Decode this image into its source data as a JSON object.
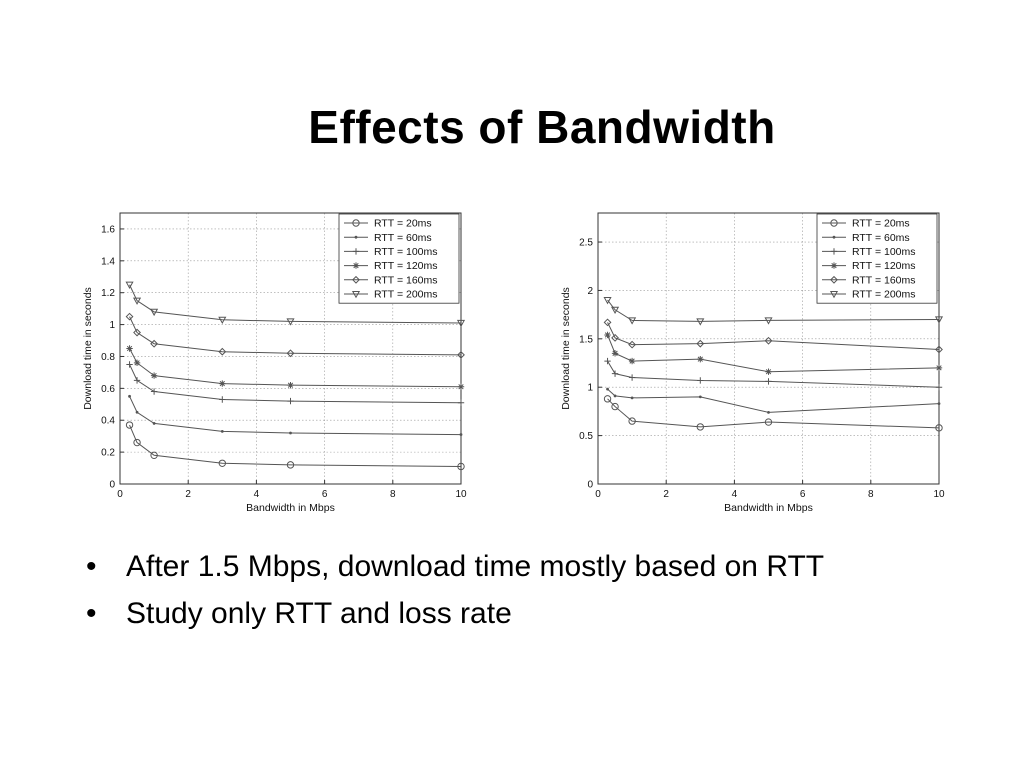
{
  "slide": {
    "title": "Effects of Bandwidth",
    "bullet_glyph": "•",
    "bullets": [
      "After 1.5 Mbps, download time mostly based on RTT",
      "Study only RTT and loss rate"
    ]
  },
  "chart_data": [
    {
      "type": "line",
      "xlabel": "Bandwidth in Mbps",
      "ylabel": "Download time in seconds",
      "xlim": [
        0,
        10
      ],
      "ylim": [
        0,
        1.7
      ],
      "xticks": [
        0,
        2,
        4,
        6,
        8,
        10
      ],
      "yticks": [
        0,
        0.2,
        0.4,
        0.6,
        0.8,
        1,
        1.2,
        1.4,
        1.6
      ],
      "ytick_labels": [
        "0",
        "0.2",
        "0.4",
        "0.6",
        "0.8",
        "1",
        "1.2",
        "1.4",
        "1.6"
      ],
      "grid": true,
      "legend_position": "top-right",
      "line_color": "#555555",
      "series": [
        {
          "name": "RTT = 20ms",
          "marker": "circle",
          "x": [
            0.28,
            0.5,
            1,
            3,
            5,
            10
          ],
          "y": [
            0.37,
            0.26,
            0.18,
            0.13,
            0.12,
            0.11
          ]
        },
        {
          "name": "RTT = 60ms",
          "marker": "point",
          "x": [
            0.28,
            0.5,
            1,
            3,
            5,
            10
          ],
          "y": [
            0.55,
            0.45,
            0.38,
            0.33,
            0.32,
            0.31
          ]
        },
        {
          "name": "RTT = 100ms",
          "marker": "plus",
          "x": [
            0.28,
            0.5,
            1,
            3,
            5,
            10
          ],
          "y": [
            0.75,
            0.65,
            0.58,
            0.53,
            0.52,
            0.51
          ]
        },
        {
          "name": "RTT = 120ms",
          "marker": "star",
          "x": [
            0.28,
            0.5,
            1,
            3,
            5,
            10
          ],
          "y": [
            0.85,
            0.76,
            0.68,
            0.63,
            0.62,
            0.61
          ]
        },
        {
          "name": "RTT = 160ms",
          "marker": "diamond",
          "x": [
            0.28,
            0.5,
            1,
            3,
            5,
            10
          ],
          "y": [
            1.05,
            0.95,
            0.88,
            0.83,
            0.82,
            0.81
          ]
        },
        {
          "name": "RTT = 200ms",
          "marker": "triangle-down",
          "x": [
            0.28,
            0.5,
            1,
            3,
            5,
            10
          ],
          "y": [
            1.25,
            1.15,
            1.08,
            1.03,
            1.02,
            1.01
          ]
        }
      ]
    },
    {
      "type": "line",
      "xlabel": "Bandwidth in Mbps",
      "ylabel": "Download time in seconds",
      "xlim": [
        0,
        10
      ],
      "ylim": [
        0,
        2.8
      ],
      "xticks": [
        0,
        2,
        4,
        6,
        8,
        10
      ],
      "yticks": [
        0,
        0.5,
        1,
        1.5,
        2,
        2.5
      ],
      "ytick_labels": [
        "0",
        "0.5",
        "1",
        "1.5",
        "2",
        "2.5"
      ],
      "grid": true,
      "legend_position": "top-right",
      "line_color": "#555555",
      "series": [
        {
          "name": "RTT = 20ms",
          "marker": "circle",
          "x": [
            0.28,
            0.5,
            1,
            3,
            5,
            10
          ],
          "y": [
            0.88,
            0.8,
            0.65,
            0.59,
            0.64,
            0.58
          ]
        },
        {
          "name": "RTT = 60ms",
          "marker": "point",
          "x": [
            0.28,
            0.5,
            1,
            3,
            5,
            10
          ],
          "y": [
            0.98,
            0.91,
            0.89,
            0.9,
            0.74,
            0.83
          ]
        },
        {
          "name": "RTT = 100ms",
          "marker": "plus",
          "x": [
            0.28,
            0.5,
            1,
            3,
            5,
            10
          ],
          "y": [
            1.27,
            1.14,
            1.1,
            1.07,
            1.06,
            1.0
          ]
        },
        {
          "name": "RTT = 120ms",
          "marker": "star",
          "x": [
            0.28,
            0.5,
            1,
            3,
            5,
            10
          ],
          "y": [
            1.54,
            1.35,
            1.27,
            1.29,
            1.16,
            1.2
          ]
        },
        {
          "name": "RTT = 160ms",
          "marker": "diamond",
          "x": [
            0.28,
            0.5,
            1,
            3,
            5,
            10
          ],
          "y": [
            1.67,
            1.51,
            1.44,
            1.45,
            1.48,
            1.39
          ]
        },
        {
          "name": "RTT = 200ms",
          "marker": "triangle-down",
          "x": [
            0.28,
            0.5,
            1,
            3,
            5,
            10
          ],
          "y": [
            1.9,
            1.8,
            1.69,
            1.68,
            1.69,
            1.7
          ]
        }
      ]
    }
  ]
}
